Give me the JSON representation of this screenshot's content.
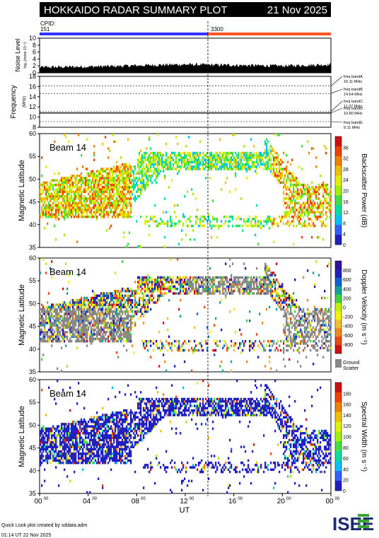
{
  "header": {
    "title": "HOKKAIDO RADAR SUMMARY PLOT",
    "date": "21 Nov 2025",
    "cpid_label": "CPID:",
    "cpid_left": "151",
    "cpid_right": "3300"
  },
  "colors": {
    "title_bg": "#000000",
    "cpid_blue": "#3333ff",
    "cpid_red": "#ff5522",
    "ground_scatter": "#888888",
    "velocity_scale": [
      "#d01010",
      "#e84a10",
      "#f08820",
      "#f0c030",
      "#f4f400",
      "#c0f000",
      "#40d040",
      "#10a0a0",
      "#1060d0",
      "#2020c0",
      "#3010a0"
    ],
    "power_scale": [
      "#2020c0",
      "#3060ff",
      "#00c0ff",
      "#00e0a0",
      "#40e040",
      "#a0f000",
      "#e0f000",
      "#f0c000",
      "#f08000",
      "#f04000",
      "#d01010"
    ],
    "width_scale": [
      "#2020c0",
      "#3060ff",
      "#00c0ff",
      "#00e0a0",
      "#40e040",
      "#a0f000",
      "#e0f000",
      "#f0c000",
      "#f08000",
      "#f04000",
      "#d01010"
    ]
  },
  "chart_data": [
    {
      "type": "area",
      "panel": "noise",
      "ylabel": "Noise Level",
      "ylabel_sub": "log₁₀(noise·10⁻²)",
      "yticks": [
        "0",
        "2",
        "4",
        "6",
        "8",
        "10"
      ],
      "ylim": [
        0,
        10
      ],
      "x": [
        0,
        2,
        4,
        6,
        8,
        10,
        12,
        14,
        16,
        18,
        20,
        22,
        24
      ],
      "values": [
        1.6,
        1.7,
        1.8,
        1.9,
        2.1,
        2.3,
        2.4,
        2.3,
        2.2,
        2.1,
        2.0,
        2.2,
        2.4
      ]
    },
    {
      "type": "line",
      "panel": "frequency",
      "ylabel": "Frequency",
      "ylabel_sub": "(MHz)",
      "yticks": [
        "8",
        "10",
        "12",
        "14",
        "16",
        "18"
      ],
      "ylim": [
        8,
        18
      ],
      "bands": [
        {
          "label": "freq bandA",
          "value": "16.11 MHz",
          "mhz": 16.11
        },
        {
          "label": "freq bandB",
          "value": "14.64 MHz",
          "mhz": 14.64
        },
        {
          "label": "freq bandC",
          "value": "11.07 MHz",
          "mhz": 11.07
        },
        {
          "label": "freq bandD",
          "value": "10.80 MHz",
          "mhz": 10.8
        },
        {
          "label": "freq bandE",
          "value": "9.11 MHz",
          "mhz": 9.11
        }
      ],
      "trace_mhz": 10.8
    },
    {
      "type": "heatmap",
      "panel": "power",
      "beam_label": "Beam 14",
      "ylabel": "Magnetic Latitude",
      "yticks": [
        "35",
        "40",
        "45",
        "50",
        "55",
        "60"
      ],
      "ylim": [
        35,
        60
      ],
      "colorbar_label": "Backscatter Power (dB)",
      "colorbar_ticks": [
        "0",
        "4",
        "8",
        "12",
        "16",
        "20",
        "24",
        "28",
        "32",
        "36"
      ],
      "clim": [
        0,
        40
      ]
    },
    {
      "type": "heatmap",
      "panel": "velocity",
      "beam_label": "Beam 14",
      "ylabel": "Magnetic Latitude",
      "yticks": [
        "35",
        "40",
        "45",
        "50",
        "55",
        "60"
      ],
      "ylim": [
        35,
        60
      ],
      "colorbar_label": "Doppler Velocity (m s⁻¹)",
      "colorbar_ticks": [
        "800",
        "600",
        "400",
        "200",
        "0",
        "-200",
        "-400",
        "-600",
        "-800"
      ],
      "clim": [
        -1000,
        1000
      ],
      "ground_label": "Ground",
      "ground_label2": "Scatter"
    },
    {
      "type": "heatmap",
      "panel": "width",
      "beam_label": "Beam 14",
      "ylabel": "Magnetic Latitude",
      "yticks": [
        "35",
        "40",
        "45",
        "50",
        "55",
        "60"
      ],
      "ylim": [
        35,
        60
      ],
      "colorbar_label": "Spectral Width (m s⁻¹)",
      "colorbar_ticks": [
        "0",
        "20",
        "40",
        "60",
        "80",
        "100",
        "120",
        "140",
        "160",
        "180"
      ],
      "clim": [
        0,
        200
      ],
      "xlabel": "UT",
      "xticks": [
        "00",
        "04",
        "08",
        "12",
        "16",
        "20",
        "00"
      ],
      "xtick_sup": "00",
      "xlim": [
        0,
        24
      ]
    }
  ],
  "footer": {
    "line1": "Quick Look plot created by sddata.adm",
    "line2": "01:14 UT 22 Nov 2025",
    "logo": "ISEE"
  }
}
